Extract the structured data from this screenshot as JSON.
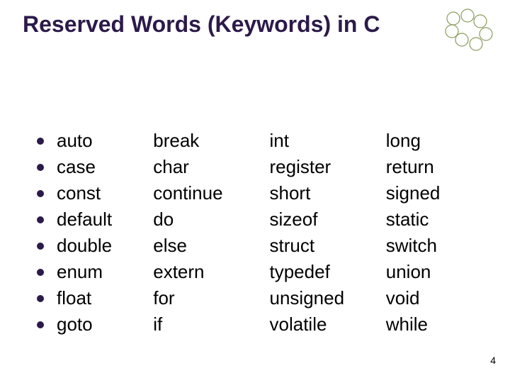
{
  "title": {
    "text": "Reserved Words (Keywords) in C",
    "fontsize": 32,
    "color": "#2c1a4a"
  },
  "decor": {
    "circle_stroke": "#8a9a5b",
    "count": 7
  },
  "bullet": {
    "color": "#2c1a4a"
  },
  "word_style": {
    "fontsize": 26,
    "color": "#000000"
  },
  "columns": [
    {
      "bulleted": true,
      "words": [
        "auto",
        "case",
        "const",
        "default",
        "double",
        "enum",
        "float",
        "goto"
      ]
    },
    {
      "bulleted": false,
      "words": [
        "break",
        "char",
        "continue",
        "do",
        "else",
        "extern",
        "for",
        "if"
      ]
    },
    {
      "bulleted": false,
      "words": [
        "int",
        "register",
        "short",
        "sizeof",
        "struct",
        "typedef",
        "unsigned",
        "volatile"
      ]
    },
    {
      "bulleted": false,
      "words": [
        "long",
        "return",
        "signed",
        "static",
        "switch",
        "union",
        "void",
        "while"
      ]
    }
  ],
  "page_number": {
    "text": "4",
    "fontsize": 14,
    "color": "#000000"
  }
}
